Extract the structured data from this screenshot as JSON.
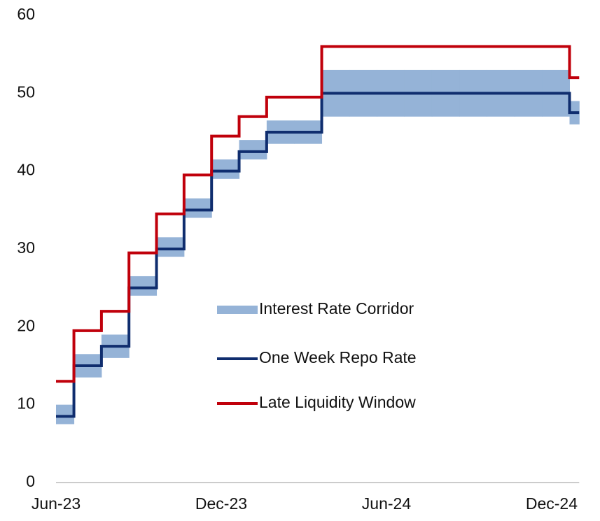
{
  "chart_data": {
    "type": "step",
    "categories": [
      "Jun-23",
      null,
      null,
      null,
      null,
      null,
      "Dec-23",
      null,
      null,
      null,
      null,
      null,
      "Jun-24",
      null,
      null,
      null,
      null,
      null,
      "Dec-24",
      null
    ],
    "series": [
      {
        "name": "Interest Rate Corridor",
        "type": "band",
        "color": "#95b3d7",
        "low": [
          7.5,
          13.5,
          16,
          24,
          29,
          34,
          39,
          41.5,
          43.5,
          43.5,
          47,
          47,
          47,
          47,
          47,
          47,
          47,
          47,
          47,
          46
        ],
        "high": [
          10,
          16.5,
          19,
          26.5,
          31.5,
          36.5,
          41.5,
          44,
          46.5,
          46.5,
          53,
          53,
          53,
          53,
          53,
          53,
          53,
          53,
          53,
          49
        ]
      },
      {
        "name": "One Week Repo Rate",
        "color": "#0f2d6e",
        "values": [
          8.5,
          15,
          17.5,
          25,
          30,
          35,
          40,
          42.5,
          45,
          45,
          50,
          50,
          50,
          50,
          50,
          50,
          50,
          50,
          50,
          47.5
        ]
      },
      {
        "name": "Late Liquidity Window",
        "color": "#c0000b",
        "values": [
          13,
          19.5,
          22,
          29.5,
          34.5,
          39.5,
          44.5,
          47,
          49.5,
          49.5,
          56,
          56,
          56,
          56,
          56,
          56,
          56,
          56,
          56,
          52
        ]
      }
    ],
    "ylim": [
      0,
      60
    ],
    "yticks": [
      0,
      10,
      20,
      30,
      40,
      50,
      60
    ],
    "grid": false,
    "legend": "center"
  }
}
